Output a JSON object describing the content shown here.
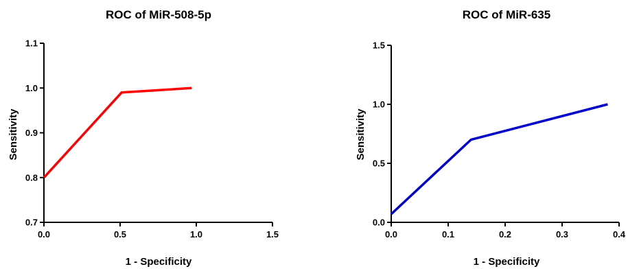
{
  "chart_data": [
    {
      "type": "line",
      "title": "ROC of MiR-508-5p",
      "xlabel": "1 - Specificity",
      "ylabel": "Sensitivity",
      "xlim": [
        0.0,
        1.5
      ],
      "ylim": [
        0.7,
        1.1
      ],
      "xticks": [
        "0.0",
        "0.5",
        "1.0",
        "1.5"
      ],
      "yticks": [
        "0.7",
        "0.8",
        "0.9",
        "1.0",
        "1.1"
      ],
      "grid": false,
      "series": [
        {
          "color": "#ff0000",
          "x": [
            0.0,
            0.51,
            0.97
          ],
          "y": [
            0.8,
            0.99,
            1.0
          ]
        }
      ]
    },
    {
      "type": "line",
      "title": "ROC of MiR-635",
      "xlabel": "1 - Specificity",
      "ylabel": "Sensitivity",
      "xlim": [
        0.0,
        0.4
      ],
      "ylim": [
        0.0,
        1.5
      ],
      "xticks": [
        "0.0",
        "0.1",
        "0.2",
        "0.3",
        "0.4"
      ],
      "yticks": [
        "0.0",
        "0.5",
        "1.0",
        "1.5"
      ],
      "grid": false,
      "series": [
        {
          "color": "#0000cc",
          "x": [
            0.0,
            0.14,
            0.38
          ],
          "y": [
            0.07,
            0.7,
            1.0
          ]
        }
      ]
    }
  ]
}
